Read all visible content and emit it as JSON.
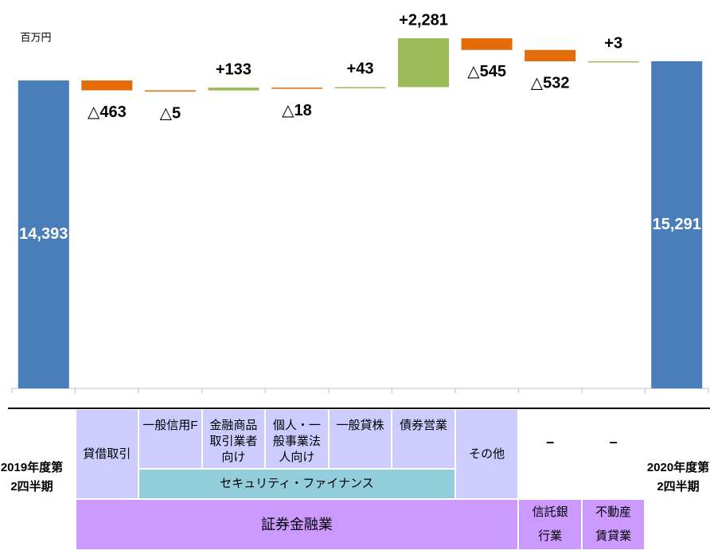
{
  "chart_data": {
    "type": "waterfall",
    "unit_label": "百万円",
    "categories": [
      "2019年度第2四半期",
      "貸借取引",
      "一般信用F",
      "金融商品取引業者向け",
      "個人・一般事業法人向け",
      "一般貸株",
      "債券営業",
      "その他",
      "–",
      "–",
      "2020年度第2四半期"
    ],
    "values": [
      14393,
      -463,
      -5,
      133,
      -18,
      43,
      2281,
      -545,
      -532,
      3,
      15291
    ],
    "value_labels": [
      "14,393",
      "△463",
      "△5",
      "+133",
      "△18",
      "+43",
      "+2,281",
      "△545",
      "△532",
      "+3",
      "15,291"
    ],
    "is_total": [
      true,
      false,
      false,
      false,
      false,
      false,
      false,
      false,
      false,
      false,
      true
    ],
    "colors": {
      "total": "#4a7ebb",
      "increase": "#9bbb59",
      "decrease": "#e36c09"
    },
    "groups": [
      {
        "label": "セキュリティ・ファイナンス",
        "from": 2,
        "to": 6
      },
      {
        "label": "証券金融業",
        "from": 1,
        "to": 7
      },
      {
        "label": "信託銀行業",
        "from": 8,
        "to": 8
      },
      {
        "label": "不動産賃貸業",
        "from": 9,
        "to": 9
      }
    ],
    "ylim": [
      0,
      17000
    ]
  }
}
